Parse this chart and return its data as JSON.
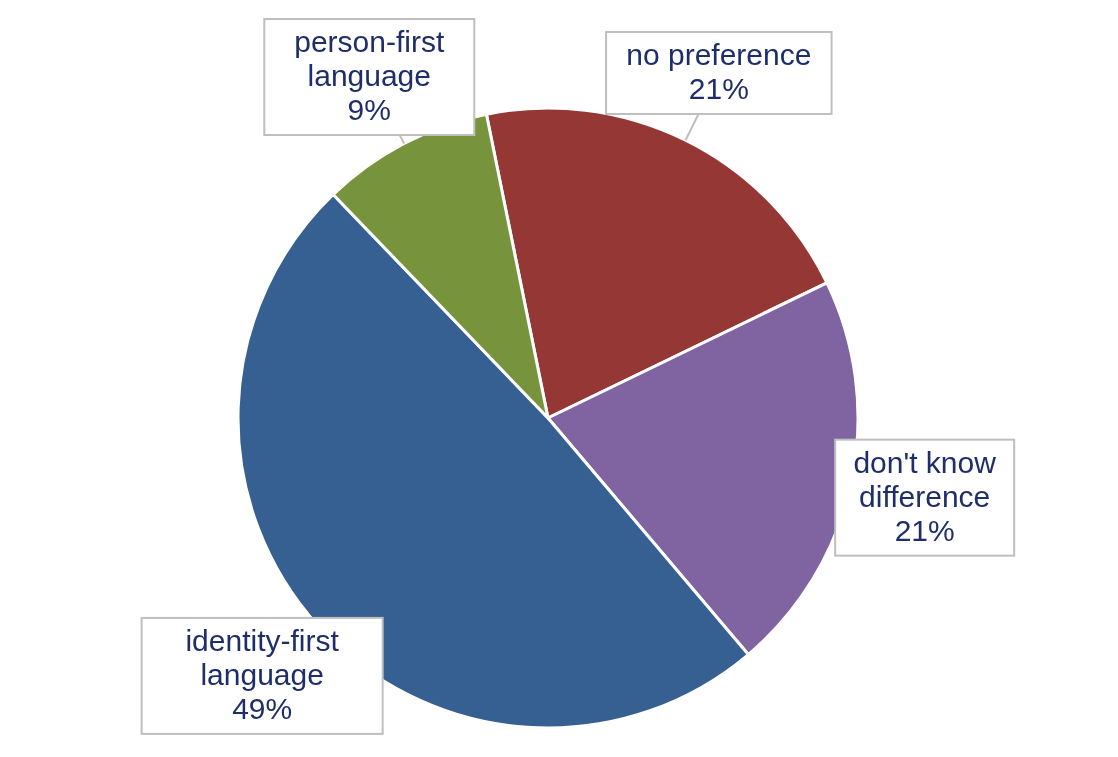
{
  "chart_data": {
    "type": "pie",
    "categories": [
      "no preference",
      "don't know difference",
      "identity-first language",
      "person-first language"
    ],
    "values": [
      21,
      21,
      49,
      9
    ],
    "value_labels": [
      "21%",
      "21%",
      "49%",
      "9%"
    ],
    "colors": [
      "#953735",
      "#8064a2",
      "#376092",
      "#77933c"
    ]
  }
}
